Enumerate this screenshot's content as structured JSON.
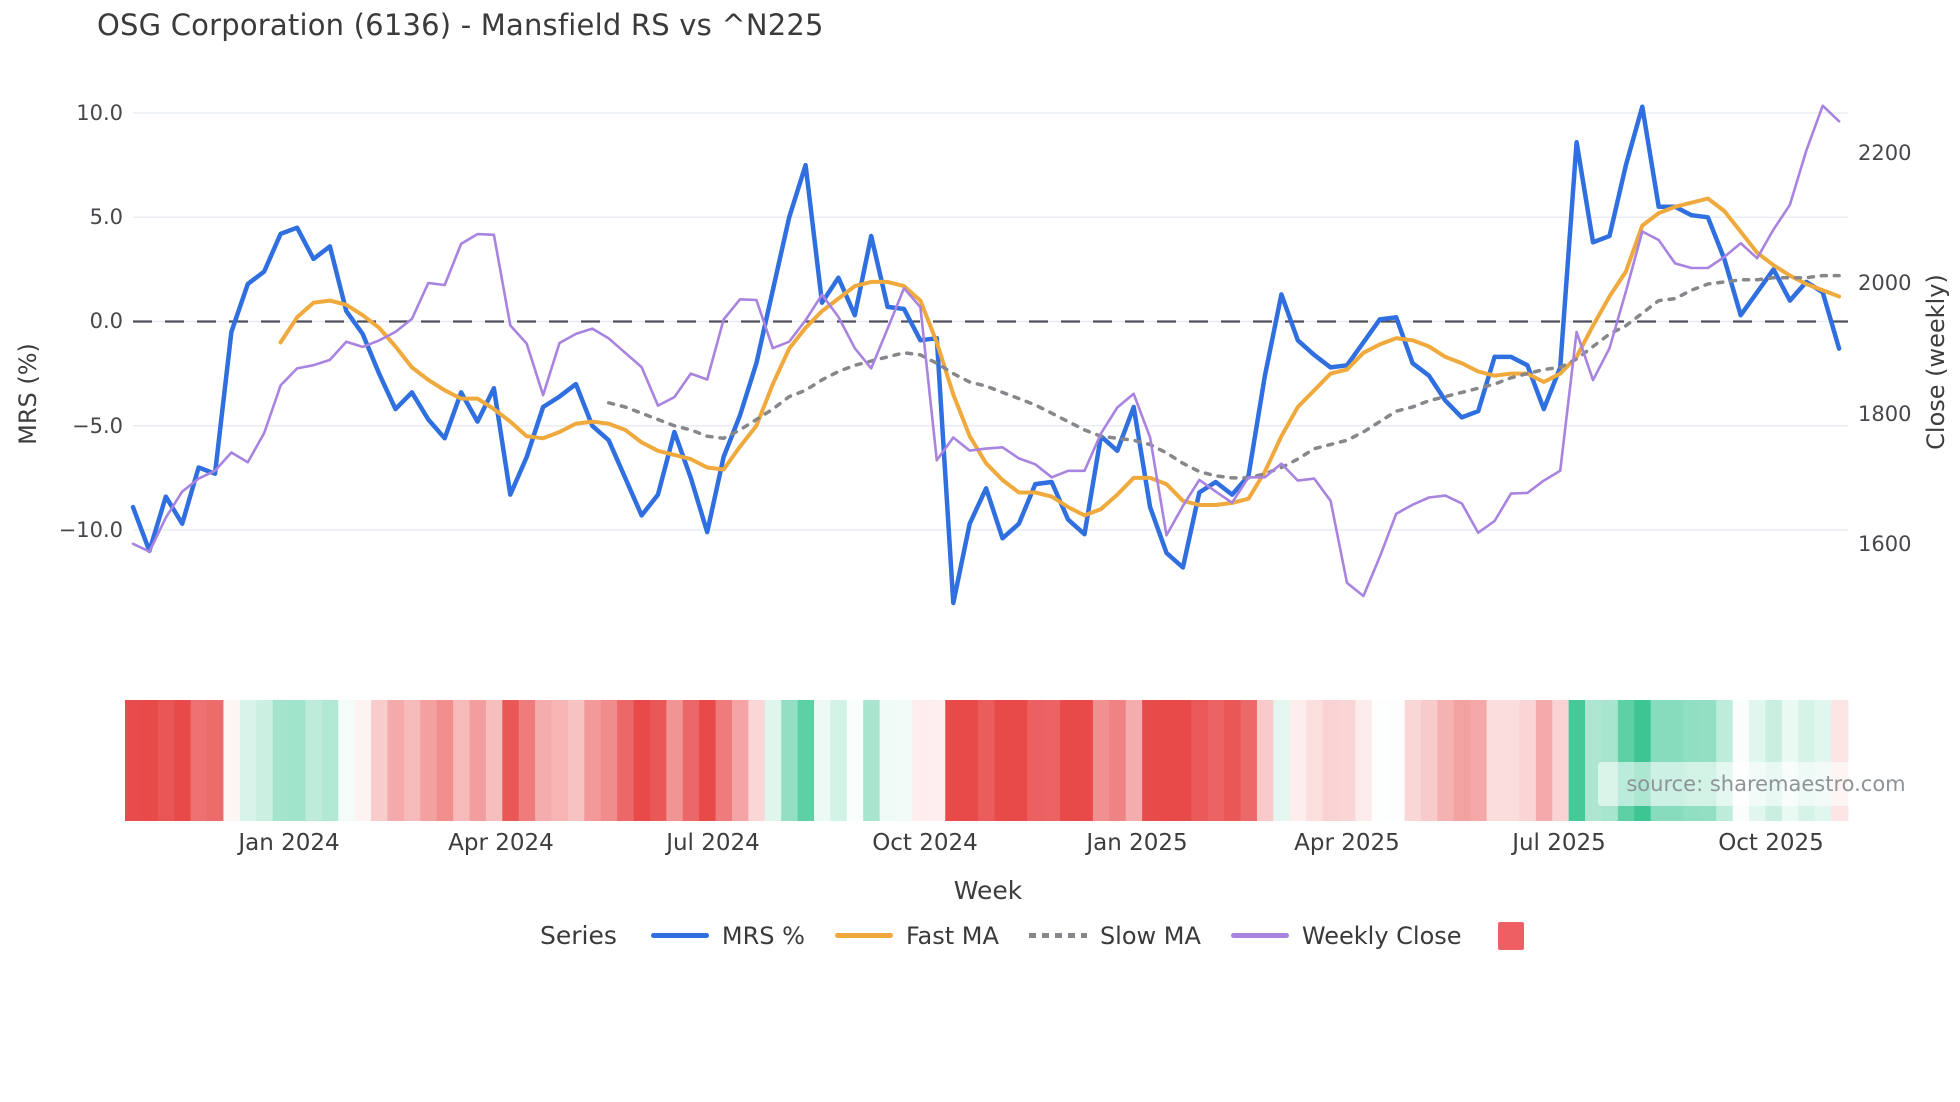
{
  "title": "OSG Corporation (6136) - Mansfield RS vs ^N225",
  "watermark": "source: sharemaestro.com",
  "colors": {
    "mrs": "#2f6fdf",
    "fast_ma": "#f0a93c",
    "slow_ma": "#85878a",
    "weekly_close": "#a983e0",
    "zero_line": "#4f4f5c",
    "grid": "#e9edf3",
    "heat_negative": "#e84949",
    "heat_positive": "#3dc694",
    "legend_square": "#ee5f63"
  },
  "chart_data": {
    "type": "line",
    "title": "OSG Corporation (6136) - Mansfield RS vs ^N225",
    "xlabel": "Week",
    "x_tick_labels": [
      "Jan 2024",
      "Apr 2024",
      "Jul 2024",
      "Oct 2024",
      "Jan 2025",
      "Apr 2025",
      "Jul 2025",
      "Oct 2025"
    ],
    "y_left": {
      "label": "MRS (%)",
      "ticks": [
        "10.0",
        "5.0",
        "0.0",
        "−5.0",
        "−10.0"
      ],
      "tick_values": [
        10,
        5,
        0,
        -5,
        -10
      ],
      "zero_reference_line": 0
    },
    "y_right": {
      "label": "Close (weekly)",
      "ticks": [
        "2200",
        "2000",
        "1800",
        "1600"
      ],
      "tick_values": [
        2200,
        2000,
        1800,
        1600
      ]
    },
    "grid": true,
    "legend_position": "bottom",
    "series": [
      {
        "name": "MRS %",
        "axis": "left",
        "style": "solid",
        "values": [
          -8.9,
          -11.0,
          -8.4,
          -9.7,
          -7.0,
          -7.3,
          -0.5,
          1.8,
          2.4,
          4.2,
          4.5,
          3.0,
          3.6,
          0.5,
          -0.6,
          -2.5,
          -4.2,
          -3.4,
          -4.7,
          -5.6,
          -3.4,
          -4.8,
          -3.2,
          -8.3,
          -6.5,
          -4.1,
          -3.6,
          -3.0,
          -5.0,
          -5.7,
          -7.5,
          -9.3,
          -8.3,
          -5.3,
          -7.5,
          -10.1,
          -6.5,
          -4.5,
          -2.0,
          1.5,
          5.0,
          7.5,
          0.9,
          2.1,
          0.3,
          4.1,
          0.7,
          0.6,
          -0.9,
          -0.8,
          -13.5,
          -9.7,
          -8.0,
          -10.4,
          -9.7,
          -7.8,
          -7.7,
          -9.5,
          -10.2,
          -5.5,
          -6.2,
          -4.1,
          -8.9,
          -11.1,
          -11.8,
          -8.2,
          -7.7,
          -8.3,
          -7.4,
          -2.6,
          1.3,
          -0.9,
          -1.6,
          -2.2,
          -2.1,
          -1.0,
          0.1,
          0.2,
          -2.0,
          -2.6,
          -3.8,
          -4.6,
          -4.3,
          -1.7,
          -1.7,
          -2.1,
          -4.2,
          -2.2,
          8.6,
          3.8,
          4.1,
          7.5,
          10.3,
          5.5,
          5.5,
          5.1,
          5.0,
          3.0,
          0.3,
          1.4,
          2.5,
          1.0,
          1.9,
          1.4,
          -1.3
        ]
      },
      {
        "name": "Fast MA",
        "axis": "left",
        "style": "solid",
        "values": [
          null,
          null,
          null,
          null,
          null,
          null,
          null,
          null,
          null,
          -1.0,
          0.2,
          0.9,
          1.0,
          0.8,
          0.3,
          -0.3,
          -1.2,
          -2.2,
          -2.8,
          -3.3,
          -3.7,
          -3.7,
          -4.2,
          -4.8,
          -5.5,
          -5.6,
          -5.3,
          -4.9,
          -4.8,
          -4.9,
          -5.2,
          -5.8,
          -6.2,
          -6.4,
          -6.6,
          -7.0,
          -7.1,
          -6.0,
          -5.0,
          -3.0,
          -1.3,
          -0.3,
          0.5,
          1.1,
          1.7,
          1.9,
          1.9,
          1.7,
          1.0,
          -1.0,
          -3.5,
          -5.5,
          -6.8,
          -7.6,
          -8.2,
          -8.2,
          -8.4,
          -8.9,
          -9.3,
          -9.0,
          -8.3,
          -7.5,
          -7.5,
          -7.8,
          -8.6,
          -8.8,
          -8.8,
          -8.7,
          -8.5,
          -7.2,
          -5.5,
          -4.1,
          -3.3,
          -2.5,
          -2.3,
          -1.5,
          -1.1,
          -0.8,
          -0.9,
          -1.2,
          -1.7,
          -2.0,
          -2.4,
          -2.6,
          -2.5,
          -2.5,
          -2.9,
          -2.5,
          -1.7,
          -0.2,
          1.2,
          2.4,
          4.6,
          5.2,
          5.5,
          5.7,
          5.9,
          5.3,
          4.3,
          3.3,
          2.7,
          2.2,
          1.8,
          1.5,
          1.2
        ]
      },
      {
        "name": "Slow MA",
        "axis": "left",
        "style": "dotted",
        "values": [
          null,
          null,
          null,
          null,
          null,
          null,
          null,
          null,
          null,
          null,
          null,
          null,
          null,
          null,
          null,
          null,
          null,
          null,
          null,
          null,
          null,
          null,
          null,
          null,
          null,
          null,
          null,
          null,
          null,
          -3.9,
          -4.1,
          -4.4,
          -4.7,
          -5.0,
          -5.2,
          -5.5,
          -5.6,
          -5.2,
          -4.7,
          -4.2,
          -3.6,
          -3.3,
          -2.8,
          -2.4,
          -2.1,
          -1.9,
          -1.7,
          -1.5,
          -1.6,
          -2.0,
          -2.5,
          -2.9,
          -3.1,
          -3.4,
          -3.7,
          -4.0,
          -4.4,
          -4.8,
          -5.2,
          -5.5,
          -5.6,
          -5.7,
          -5.9,
          -6.3,
          -6.8,
          -7.2,
          -7.4,
          -7.5,
          -7.5,
          -7.3,
          -7.0,
          -6.6,
          -6.1,
          -5.9,
          -5.7,
          -5.3,
          -4.8,
          -4.3,
          -4.1,
          -3.8,
          -3.6,
          -3.4,
          -3.2,
          -3.0,
          -2.7,
          -2.5,
          -2.3,
          -2.2,
          -1.8,
          -1.2,
          -0.6,
          -0.2,
          0.4,
          1.0,
          1.1,
          1.5,
          1.8,
          1.9,
          2.0,
          2.0,
          2.1,
          2.1,
          2.1,
          2.2,
          2.2
        ]
      },
      {
        "name": "Weekly Close",
        "axis": "right",
        "style": "solid",
        "values": [
          1600,
          1588,
          1640,
          1680,
          1700,
          1712,
          1740,
          1725,
          1770,
          1843,
          1869,
          1874,
          1882,
          1910,
          1902,
          1912,
          1925,
          1945,
          2000,
          1997,
          2060,
          2075,
          2074,
          1935,
          1907,
          1828,
          1908,
          1922,
          1930,
          1915,
          1893,
          1871,
          1812,
          1825,
          1861,
          1852,
          1944,
          1975,
          1974,
          1900,
          1910,
          1943,
          1982,
          1948,
          1900,
          1869,
          1930,
          1992,
          1963,
          1728,
          1763,
          1743,
          1746,
          1748,
          1731,
          1722,
          1702,
          1712,
          1712,
          1769,
          1809,
          1830,
          1763,
          1613,
          1658,
          1698,
          1680,
          1663,
          1702,
          1702,
          1723,
          1697,
          1700,
          1666,
          1540,
          1520,
          1580,
          1646,
          1660,
          1671,
          1674,
          1662,
          1617,
          1635,
          1677,
          1678,
          1697,
          1712,
          1925,
          1851,
          1900,
          1987,
          2079,
          2066,
          2030,
          2023,
          2023,
          2040,
          2061,
          2038,
          2082,
          2120,
          2203,
          2272,
          2248
        ]
      }
    ],
    "heatmap_strip": {
      "derived_from": "MRS %",
      "rule": "green when MRS positive, red when negative, intensity proportional to |MRS|"
    }
  },
  "legend": {
    "title": "Series",
    "items": [
      "MRS %",
      "Fast MA",
      "Slow MA",
      "Weekly Close"
    ]
  }
}
